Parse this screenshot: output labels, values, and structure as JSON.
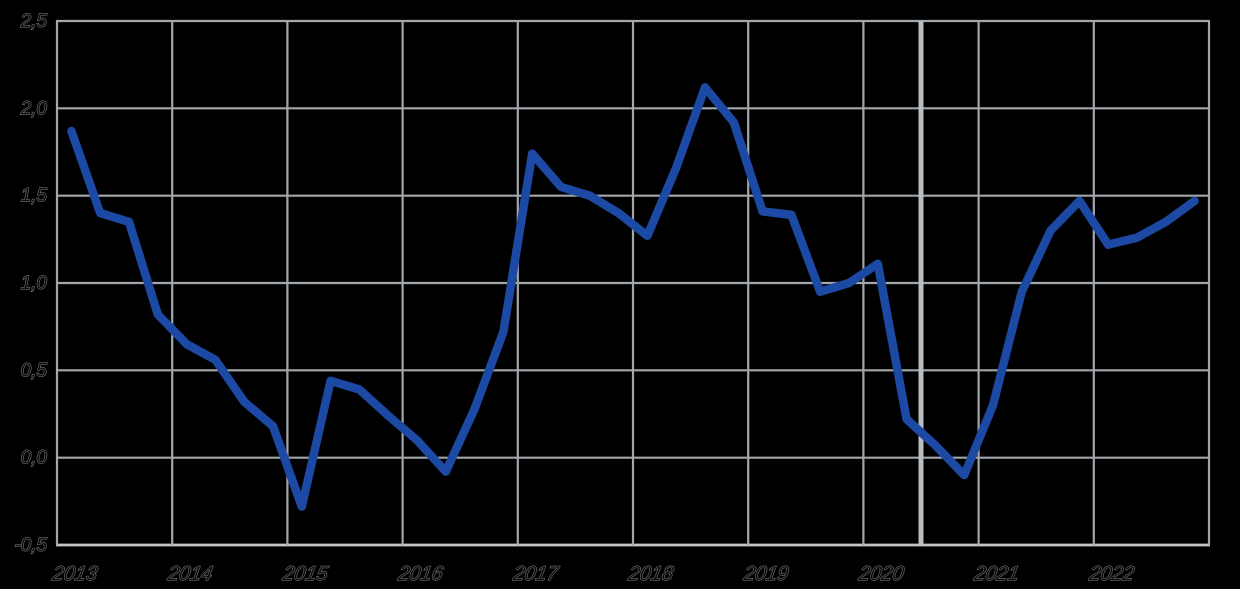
{
  "chart_data": {
    "type": "line",
    "title": "",
    "background_color": "#000000",
    "grid": true,
    "x_axis": {
      "tick_labels": [
        "2013",
        "2014",
        "2015",
        "2016",
        "2017",
        "2018",
        "2019",
        "2020",
        "2021",
        "2022"
      ],
      "range_years": [
        2013,
        2023
      ]
    },
    "y_axis": {
      "tick_labels": [
        "2,5",
        "2,0",
        "1,5",
        "1,0",
        "0,5",
        "0,0",
        "-0,5"
      ],
      "tick_values": [
        2.5,
        2.0,
        1.5,
        1.0,
        0.5,
        0.0,
        -0.5
      ],
      "range": [
        -0.5,
        2.5
      ],
      "decimal_separator": ","
    },
    "x": [
      "2013-Q1",
      "2013-Q2",
      "2013-Q3",
      "2013-Q4",
      "2014-Q1",
      "2014-Q2",
      "2014-Q3",
      "2014-Q4",
      "2015-Q1",
      "2015-Q2",
      "2015-Q3",
      "2015-Q4",
      "2016-Q1",
      "2016-Q2",
      "2016-Q3",
      "2016-Q4",
      "2017-Q1",
      "2017-Q2",
      "2017-Q3",
      "2017-Q4",
      "2018-Q1",
      "2018-Q2",
      "2018-Q3",
      "2018-Q4",
      "2019-Q1",
      "2019-Q2",
      "2019-Q3",
      "2019-Q4",
      "2020-Q1",
      "2020-Q2",
      "2020-Q3",
      "2020-Q4",
      "2021-Q1",
      "2021-Q2",
      "2021-Q3",
      "2021-Q4",
      "2022-Q1",
      "2022-Q2",
      "2022-Q3",
      "2022-Q4"
    ],
    "series": [
      {
        "name": "quarterly-line-series",
        "color": "#1b49a3",
        "values": [
          1.87,
          1.4,
          1.35,
          0.82,
          0.65,
          0.56,
          0.32,
          0.18,
          -0.28,
          0.44,
          0.39,
          0.24,
          0.1,
          -0.08,
          0.28,
          0.72,
          1.74,
          1.55,
          1.5,
          1.4,
          1.27,
          1.66,
          2.12,
          1.92,
          1.41,
          1.39,
          0.95,
          1.0,
          1.11,
          0.22,
          0.07,
          -0.1,
          0.3,
          0.95,
          1.3,
          1.47,
          1.22,
          1.26,
          1.35,
          1.47
        ]
      }
    ],
    "annotations": [
      {
        "type": "vertical_line",
        "x": "2020-07",
        "x_year": 2020.5,
        "color": "#b8bdc1"
      }
    ],
    "colors": {
      "gridline": "#a2a7ac",
      "frame": "#a2a7ac",
      "bottom_axis": "#c2c6ca",
      "event_line": "#b8bdc1",
      "series_line": "#1b49a3",
      "label_fill": "#0b0b0b",
      "label_outline": "#848484"
    }
  }
}
